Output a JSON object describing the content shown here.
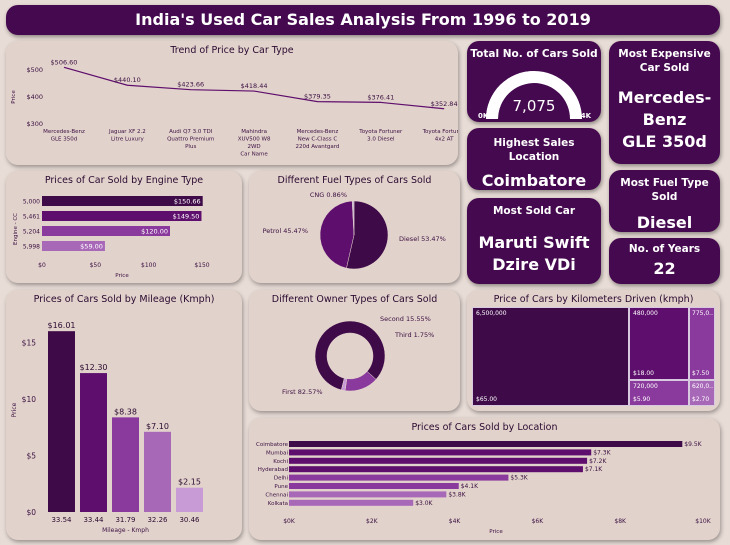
{
  "title": "India's Used Car Sales Analysis From 1996 to 2019",
  "kpis": {
    "total_title": "Total No. of Cars Sold",
    "total_value": "7,075",
    "gauge_min": "0K",
    "gauge_max": "14K",
    "gauge_fraction": 0.505,
    "expensive_title": "Most Expensive Car Sold",
    "expensive_line1": "Mercedes-",
    "expensive_line2": "Benz",
    "expensive_line3": "GLE 350d",
    "location_title": "Highest Sales Location",
    "location_value": "Coimbatore",
    "fuel_title": "Most Fuel Type Sold",
    "fuel_value": "Diesel",
    "sold_title": "Most Sold Car",
    "sold_line1": "Maruti Swift",
    "sold_line2": "Dzire VDi",
    "years_title": "No. of Years",
    "years_value": "22"
  },
  "colors": {
    "dark": "#3e0a48",
    "c2": "#5e0e6c",
    "c3": "#8a3a9c",
    "c4": "#a868b8",
    "c5": "#c89ad6"
  },
  "chart_data": [
    {
      "id": "trend",
      "type": "line",
      "title": "Trend of Price by Car Type",
      "xlabel": "Car Name",
      "ylabel": "Price",
      "ylim": [
        300,
        530
      ],
      "yticks": [
        "$300",
        "$400",
        "$500"
      ],
      "categories": [
        [
          "Mercedes-Benz",
          "GLE 350d"
        ],
        [
          "Jaguar XF 2.2",
          "Litre Luxury"
        ],
        [
          "Audi Q7 3.0 TDI",
          "Quattro Premium",
          "Plus"
        ],
        [
          "Mahindra",
          "XUV500 W8",
          "2WD"
        ],
        [
          "Mercedes-Benz",
          "New C-Class C",
          "220d Avantgard"
        ],
        [
          "Toyota Fortuner",
          "3.0 Diesel"
        ],
        [
          "Toyota Fortuner",
          "4x2 AT"
        ]
      ],
      "values": [
        506.6,
        440.1,
        423.66,
        418.44,
        379.35,
        376.41,
        352.84
      ],
      "labels": [
        "$506.60",
        "$440.10",
        "$423.66",
        "$418.44",
        "$379.35",
        "$376.41",
        "$352.84"
      ]
    },
    {
      "id": "engine",
      "type": "bar",
      "title": "Prices of Car Sold by Engine Type",
      "xlabel": "Price",
      "ylabel": "Engine - CC",
      "categories": [
        "5,000",
        "5,461",
        "5,204",
        "5,998"
      ],
      "values": [
        150.66,
        149.5,
        120.0,
        59.0
      ],
      "labels": [
        "$150.66",
        "$149.50",
        "$120.00",
        "$59.00"
      ],
      "xlim": [
        0,
        150
      ],
      "xticks": [
        "$0",
        "$50",
        "$100",
        "$150"
      ]
    },
    {
      "id": "fuel",
      "type": "pie",
      "title": "Different Fuel Types of Cars Sold",
      "slices": [
        {
          "label": "Diesel 53.47%",
          "value": 53.47
        },
        {
          "label": "Petrol 45.47%",
          "value": 45.47
        },
        {
          "label": "CNG 0.86%",
          "value": 0.86
        }
      ]
    },
    {
      "id": "mileage",
      "type": "bar",
      "title": "Prices of Cars Sold by Mileage (Kmph)",
      "xlabel": "Mileage - Kmph",
      "ylabel": "Price",
      "ylim": [
        0,
        17
      ],
      "yticks": [
        "$0",
        "$5",
        "$10",
        "$15"
      ],
      "categories": [
        "33.54",
        "33.44",
        "31.79",
        "32.26",
        "30.46"
      ],
      "values": [
        16.01,
        12.3,
        8.38,
        7.1,
        2.15
      ],
      "labels": [
        "$16.01",
        "$12.30",
        "$8.38",
        "$7.10",
        "$2.15"
      ]
    },
    {
      "id": "owner",
      "type": "pie",
      "title": "Different Owner Types of Cars Sold",
      "slices": [
        {
          "label": "First 82.57%",
          "value": 82.57
        },
        {
          "label": "Second 15.55%",
          "value": 15.55
        },
        {
          "label": "Third 1.75%",
          "value": 1.75
        }
      ]
    },
    {
      "id": "treemap",
      "type": "heatmap",
      "title": "Price of Cars by Kilometers Driven (kmph)",
      "cells": [
        {
          "km": "6,500,000",
          "price": "$65.00"
        },
        {
          "km": "480,000",
          "price": "$18.00"
        },
        {
          "km": "775,0..",
          "price": "$7.50"
        },
        {
          "km": "720,000",
          "price": "$5.90"
        },
        {
          "km": "620,0..",
          "price": "$2.70"
        }
      ]
    },
    {
      "id": "location",
      "type": "bar",
      "title": "Prices of Cars Sold by Location",
      "xlabel": "Price",
      "categories": [
        "Coimbatore",
        "Mumbai",
        "Kochi",
        "Hyderabad",
        "Delhi",
        "Pune",
        "Chennai",
        "Kolkata"
      ],
      "values": [
        9.5,
        7.3,
        7.2,
        7.1,
        5.3,
        4.1,
        3.8,
        3.0
      ],
      "labels": [
        "$9.5K",
        "$7.3K",
        "$7.2K",
        "$7.1K",
        "$5.3K",
        "$4.1K",
        "$3.8K",
        "$3.0K"
      ],
      "xlim": [
        0,
        10
      ],
      "xticks": [
        "$0K",
        "$2K",
        "$4K",
        "$6K",
        "$8K",
        "$10K"
      ]
    }
  ]
}
